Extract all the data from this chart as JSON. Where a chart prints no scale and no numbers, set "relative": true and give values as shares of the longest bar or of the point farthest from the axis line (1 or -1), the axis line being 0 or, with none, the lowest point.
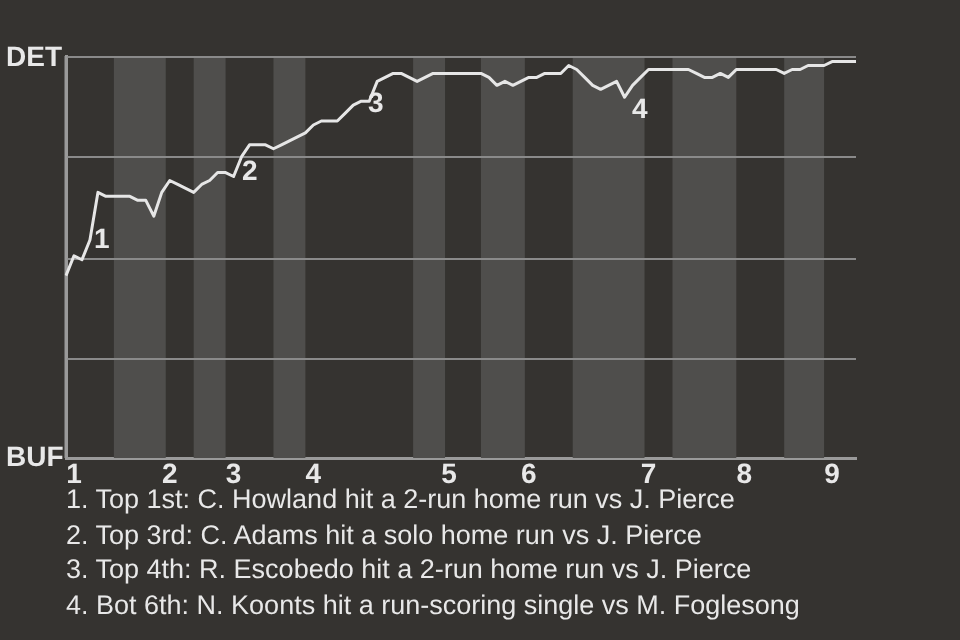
{
  "chart_data": {
    "type": "line",
    "categories": [
      null,
      "1",
      null,
      null,
      null,
      null,
      null,
      null,
      null,
      null,
      null,
      null,
      null,
      "2",
      null,
      null,
      null,
      null,
      null,
      null,
      null,
      "3",
      null,
      null,
      null,
      null,
      null,
      null,
      null,
      null,
      null,
      "4",
      null,
      null,
      null,
      null,
      null,
      null,
      null,
      null,
      null,
      null,
      null,
      null,
      null,
      null,
      null,
      null,
      "5",
      null,
      null,
      null,
      null,
      null,
      null,
      null,
      null,
      null,
      "6",
      null,
      null,
      null,
      null,
      null,
      null,
      null,
      null,
      null,
      null,
      null,
      null,
      null,
      null,
      "7",
      null,
      null,
      null,
      null,
      null,
      null,
      null,
      null,
      null,
      null,
      null,
      "8",
      null,
      null,
      null,
      null,
      null,
      null,
      null,
      null,
      null,
      null,
      "9",
      null,
      null,
      null
    ],
    "series": [
      {
        "color": "#e6e6e6",
        "values": [
          0.46,
          0.51,
          0.5,
          0.55,
          0.67,
          0.66,
          0.66,
          0.66,
          0.66,
          0.65,
          0.65,
          0.61,
          0.67,
          0.7,
          0.69,
          0.68,
          0.67,
          0.69,
          0.7,
          0.72,
          0.72,
          0.71,
          0.76,
          0.79,
          0.79,
          0.79,
          0.78,
          0.79,
          0.8,
          0.81,
          0.82,
          0.84,
          0.85,
          0.85,
          0.85,
          0.87,
          0.89,
          0.9,
          0.9,
          0.95,
          0.96,
          0.97,
          0.97,
          0.96,
          0.95,
          0.96,
          0.97,
          0.97,
          0.97,
          0.97,
          0.97,
          0.97,
          0.97,
          0.96,
          0.94,
          0.95,
          0.94,
          0.95,
          0.96,
          0.96,
          0.97,
          0.97,
          0.97,
          0.99,
          0.98,
          0.96,
          0.94,
          0.93,
          0.94,
          0.95,
          0.91,
          0.94,
          0.96,
          0.98,
          0.98,
          0.98,
          0.98,
          0.98,
          0.98,
          0.97,
          0.96,
          0.96,
          0.97,
          0.96,
          0.98,
          0.98,
          0.98,
          0.98,
          0.98,
          0.98,
          0.97,
          0.98,
          0.98,
          0.99,
          0.99,
          0.99,
          1,
          1,
          1,
          1
        ]
      }
    ],
    "relative": true,
    "grid": "y",
    "marker": "none",
    "annotations": [
      "DET",
      "BUF",
      "1",
      "2",
      "3",
      "4",
      "1. Top 1st: C. Howland hit a 2-run home run vs J. Pierce",
      "2. Top 3rd: C. Adams hit a solo home run vs J. Pierce",
      "3. Top 4th: R. Escobedo hit a 2-run home run vs J. Pierce",
      "4. Bot 6th: N. Koonts hit a run-scoring single vs M. Foglesong"
    ]
  }
}
